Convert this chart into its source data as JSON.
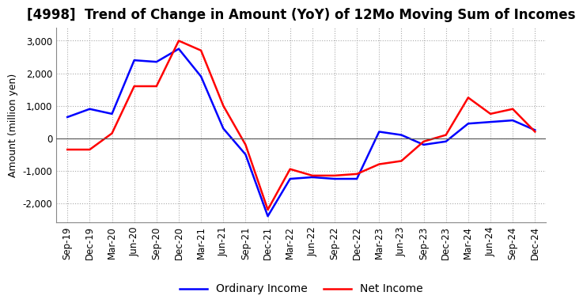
{
  "title": "[4998]  Trend of Change in Amount (YoY) of 12Mo Moving Sum of Incomes",
  "ylabel": "Amount (million yen)",
  "ylim": [
    -2600,
    3400
  ],
  "yticks": [
    -2000,
    -1000,
    0,
    1000,
    2000,
    3000
  ],
  "x_labels": [
    "Sep-19",
    "Dec-19",
    "Mar-20",
    "Jun-20",
    "Sep-20",
    "Dec-20",
    "Mar-21",
    "Jun-21",
    "Sep-21",
    "Dec-21",
    "Mar-22",
    "Jun-22",
    "Sep-22",
    "Dec-22",
    "Mar-23",
    "Jun-23",
    "Sep-23",
    "Dec-23",
    "Mar-24",
    "Jun-24",
    "Sep-24",
    "Dec-24"
  ],
  "ordinary_income": [
    650,
    900,
    750,
    2400,
    2350,
    2750,
    1900,
    300,
    -500,
    -2400,
    -1250,
    -1200,
    -1250,
    -1250,
    200,
    100,
    -200,
    -100,
    450,
    500,
    550,
    250
  ],
  "net_income": [
    -350,
    -350,
    150,
    1600,
    1600,
    3000,
    2700,
    1000,
    -200,
    -2200,
    -950,
    -1150,
    -1150,
    -1100,
    -800,
    -700,
    -100,
    100,
    1250,
    750,
    900,
    200
  ],
  "ordinary_color": "#0000ff",
  "net_color": "#ff0000",
  "grid_color": "#aaaaaa",
  "background_color": "#ffffff",
  "zero_line_color": "#555555",
  "title_fontsize": 12,
  "label_fontsize": 9,
  "tick_fontsize": 8.5,
  "legend_fontsize": 10
}
